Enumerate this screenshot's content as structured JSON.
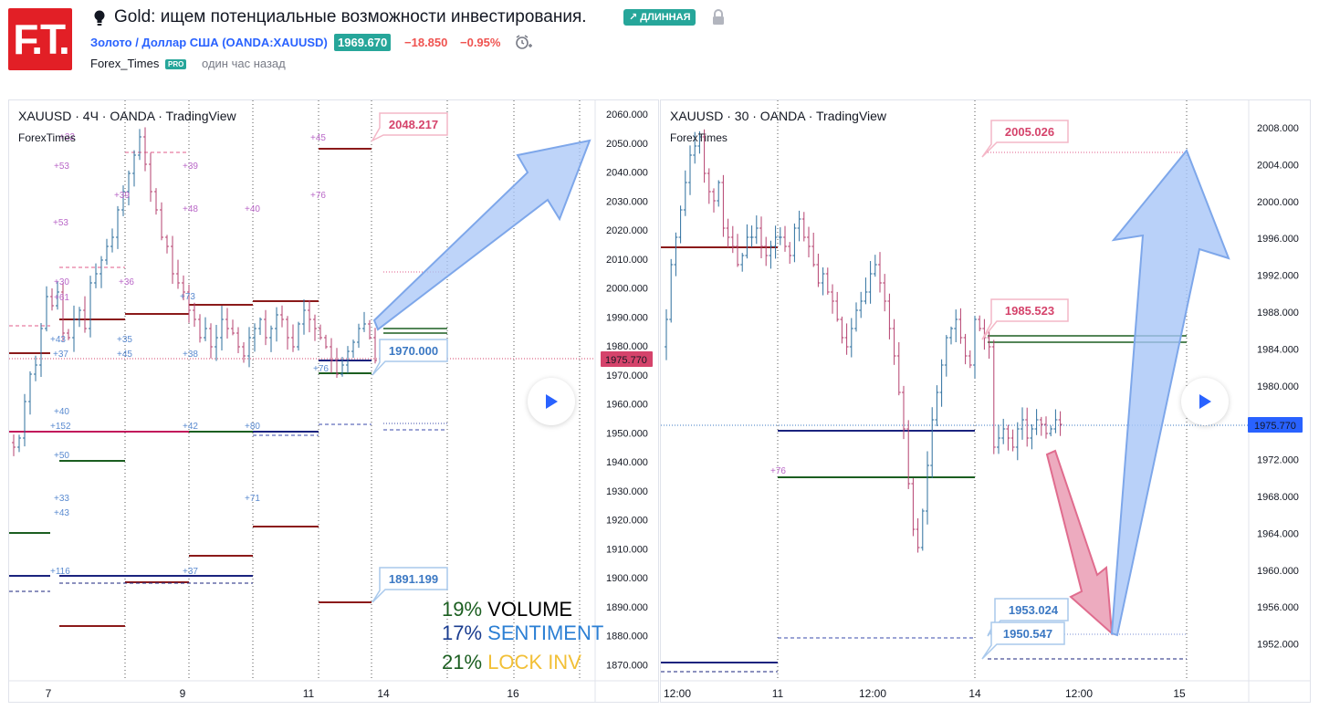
{
  "header": {
    "logo_text": "F.T.",
    "title": "Gold: ищем потенциальные возможности инвестирования.",
    "direction_badge": "↗ ДЛИННАЯ",
    "symbol_link": "Золото / Доллар США (OANDA:XAUUSD)",
    "price": "1969.670",
    "change_abs": "−18.850",
    "change_pct": "−0.95%",
    "author": "Forex_Times",
    "author_badge": "PRO",
    "published": "один час назад",
    "icons": [
      "idea-bulb-icon",
      "lock-icon",
      "alarm-clock-icon"
    ],
    "colors": {
      "logo": "#e21f26",
      "badge": "#26a69a",
      "link": "#2962ff",
      "negative": "#ef5350"
    }
  },
  "left_chart": {
    "title": "XAUUSD · 4Ч · OANDA · TradingView",
    "watermark": "ForexTimes",
    "y_ticks": [
      "2060.000",
      "2050.000",
      "2040.000",
      "2030.000",
      "2020.000",
      "2010.000",
      "2000.000",
      "1990.000",
      "1980.000",
      "1970.000",
      "1960.000",
      "1950.000",
      "1940.000",
      "1930.000",
      "1920.000",
      "1910.000",
      "1900.000",
      "1890.000",
      "1880.000",
      "1870.000"
    ],
    "x_ticks": [
      "7",
      "9",
      "11",
      "14",
      "16"
    ],
    "last_price": "1975.770",
    "callouts": {
      "top": "2048.217",
      "mid": "1970.000",
      "bottom": "1891.199"
    },
    "level_labels": [
      "+32",
      "+53",
      "+39",
      "+39",
      "+48",
      "+40",
      "+45",
      "+76",
      "+30",
      "+61",
      "+36",
      "+37",
      "+73",
      "+43",
      "+37",
      "+35",
      "+45",
      "+38",
      "+76",
      "+40",
      "+152",
      "+42",
      "+80",
      "+50",
      "+71",
      "+33",
      "+43",
      "+116",
      "+37"
    ],
    "stats": [
      {
        "pct": "19%",
        "label": "VOLUME"
      },
      {
        "pct": "17%",
        "label": "SENTIMENT"
      },
      {
        "pct": "21%",
        "label": "LOCK INV"
      }
    ]
  },
  "right_chart": {
    "title": "XAUUSD · 30 · OANDA · TradingView",
    "watermark": "ForexTimes",
    "y_ticks": [
      "2008.000",
      "2004.000",
      "2000.000",
      "1996.000",
      "1992.000",
      "1988.000",
      "1984.000",
      "1980.000",
      "1976.000",
      "1972.000",
      "1968.000",
      "1964.000",
      "1960.000",
      "1956.000",
      "1952.000"
    ],
    "x_ticks": [
      "12:00",
      "11",
      "12:00",
      "14",
      "12:00",
      "15"
    ],
    "last_price": "1975.770",
    "callouts": {
      "top": "2005.026",
      "mid": "1985.523",
      "low1": "1953.024",
      "low2": "1950.547"
    },
    "level_labels": [
      "+76"
    ]
  },
  "play_icon": "play-icon"
}
